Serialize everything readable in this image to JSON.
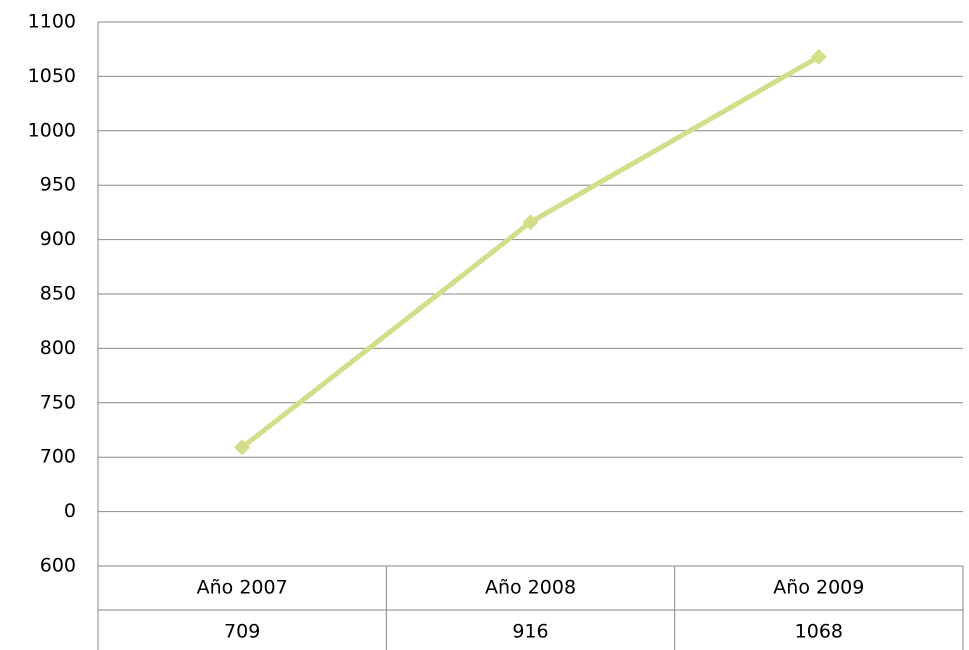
{
  "chart_data": {
    "type": "line",
    "categories": [
      "Año 2007",
      "Año 2008",
      "Año 2009"
    ],
    "values": [
      709,
      916,
      1068
    ],
    "color": "#d4de8a",
    "ylim": [
      600,
      1100
    ],
    "yticks": [
      600,
      {
        "value": 650,
        "label": "0"
      },
      700,
      750,
      800,
      850,
      900,
      950,
      1000,
      1050,
      1100
    ],
    "grid": true
  }
}
